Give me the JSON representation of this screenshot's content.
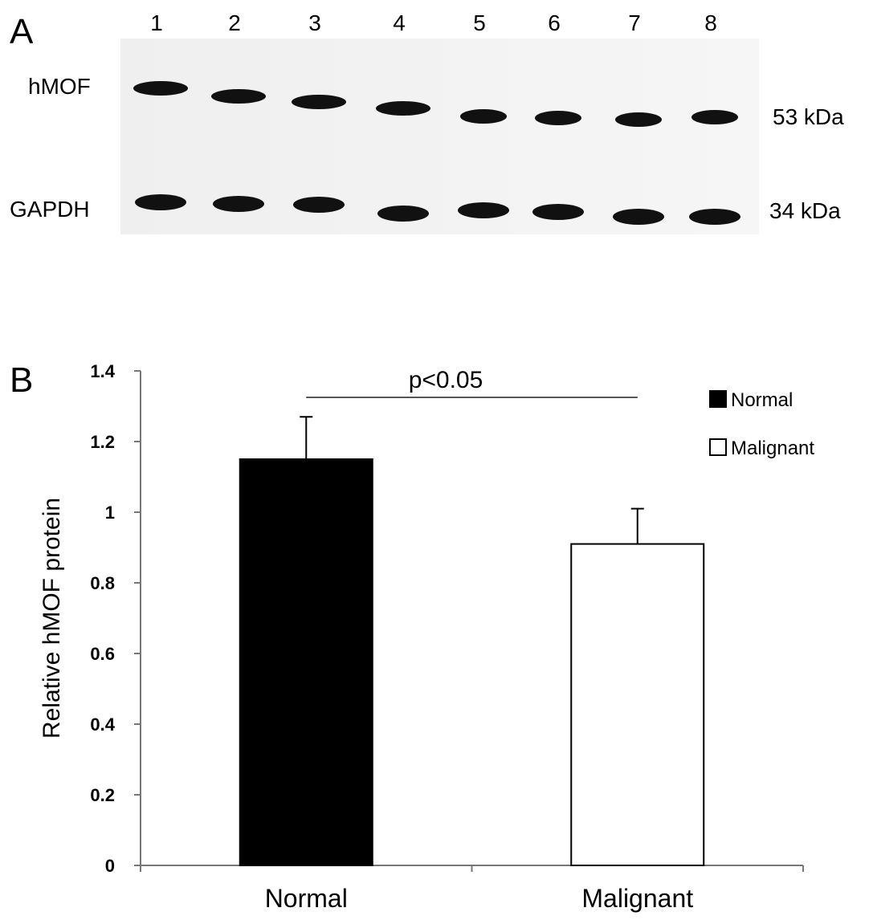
{
  "panel_a": {
    "label": "A",
    "lanes": [
      "1",
      "2",
      "3",
      "4",
      "5",
      "6",
      "7",
      "8"
    ],
    "rows": [
      {
        "name": "hMOF",
        "size": "53 kDa"
      },
      {
        "name": "GAPDH",
        "size": "34 kDa"
      }
    ]
  },
  "chart_data": {
    "type": "bar",
    "label": "B",
    "ylabel": "Relative hMOF protein",
    "annotation": "p<0.05",
    "categories": [
      "Normal",
      "Malignant"
    ],
    "values": [
      1.15,
      0.91
    ],
    "errors": [
      0.12,
      0.1
    ],
    "colors": [
      "#000000",
      "#ffffff"
    ],
    "ylim": [
      0,
      1.4
    ],
    "yticks": [
      0,
      0.2,
      0.4,
      0.6,
      0.8,
      1,
      1.2,
      1.4
    ],
    "grid": false,
    "legend": "top-right"
  }
}
